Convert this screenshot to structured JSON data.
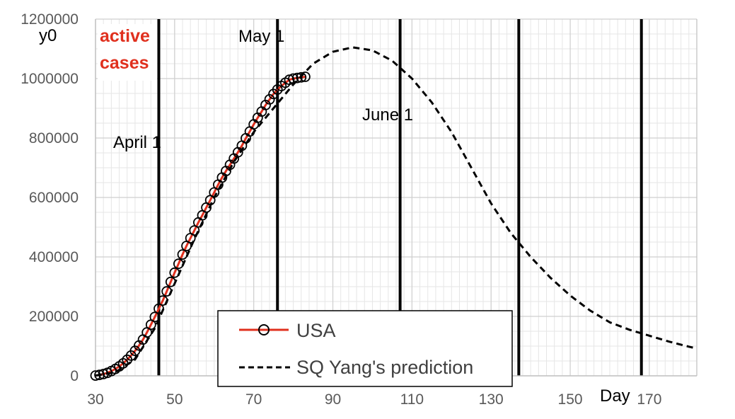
{
  "chart_data": {
    "type": "line",
    "title": "",
    "xlabel": "Day",
    "ylabel": "y0",
    "xlim": [
      30,
      182
    ],
    "ylim": [
      0,
      1200000
    ],
    "grid": true,
    "x_ticks": [
      30,
      50,
      70,
      90,
      110,
      130,
      150,
      170
    ],
    "x_tick_labels": [
      "30",
      "50",
      "70",
      "90",
      "110",
      "130",
      "150",
      "170"
    ],
    "y_ticks": [
      0,
      200000,
      400000,
      600000,
      800000,
      1000000,
      1200000
    ],
    "y_tick_labels": [
      "0",
      "200000",
      "400000",
      "600000",
      "800000",
      "1000000",
      "1200000"
    ],
    "corner_label": "active cases",
    "corner_label_lines": [
      "active",
      "cases"
    ],
    "corner_label_color": "#e0301e",
    "markers": [
      {
        "label": "April 1",
        "x": 46
      },
      {
        "label": "May 1",
        "x": 76
      },
      {
        "label": "June 1",
        "x": 107
      },
      {
        "label": "",
        "x": 137
      },
      {
        "label": "",
        "x": 168
      }
    ],
    "legend": {
      "position": "bottom-center",
      "entries": [
        "USA",
        "SQ Yang's prediction"
      ]
    },
    "series": [
      {
        "name": "USA",
        "color": "#e0301e",
        "marker": "open-circle",
        "x": [
          30,
          31,
          32,
          33,
          34,
          35,
          36,
          37,
          38,
          39,
          40,
          41,
          42,
          43,
          44,
          45,
          46,
          47,
          48,
          49,
          50,
          51,
          52,
          53,
          54,
          55,
          56,
          57,
          58,
          59,
          60,
          61,
          62,
          63,
          64,
          65,
          66,
          67,
          68,
          69,
          70,
          71,
          72,
          73,
          74,
          75,
          76,
          77,
          78,
          79,
          80,
          81,
          82,
          83
        ],
        "values": [
          1000,
          3000,
          6000,
          10000,
          16000,
          23000,
          32000,
          42000,
          54000,
          68000,
          84000,
          102000,
          122000,
          146000,
          172000,
          198000,
          226000,
          253000,
          284000,
          316000,
          347000,
          377000,
          408000,
          437000,
          463000,
          489000,
          516000,
          540000,
          566000,
          591000,
          617000,
          643000,
          667000,
          689000,
          710000,
          731000,
          752000,
          774000,
          799000,
          822000,
          846000,
          868000,
          889000,
          911000,
          930000,
          948000,
          963000,
          975000,
          986000,
          996000,
          1000000,
          1002000,
          1004000,
          1006000
        ]
      },
      {
        "name": "SQ Yang's prediction",
        "color": "#000000",
        "style": "dashed",
        "x": [
          30,
          35,
          40,
          45,
          50,
          55,
          60,
          65,
          70,
          75,
          80,
          85,
          90,
          95,
          100,
          105,
          110,
          115,
          120,
          125,
          130,
          135,
          140,
          145,
          150,
          155,
          160,
          165,
          170,
          175,
          180,
          182
        ],
        "values": [
          1000,
          12000,
          55000,
          160000,
          310000,
          460000,
          600000,
          720000,
          820000,
          900000,
          980000,
          1050000,
          1090000,
          1105000,
          1095000,
          1060000,
          1000000,
          920000,
          820000,
          700000,
          580000,
          480000,
          400000,
          330000,
          270000,
          220000,
          180000,
          155000,
          135000,
          115000,
          98000,
          92000
        ]
      }
    ]
  }
}
